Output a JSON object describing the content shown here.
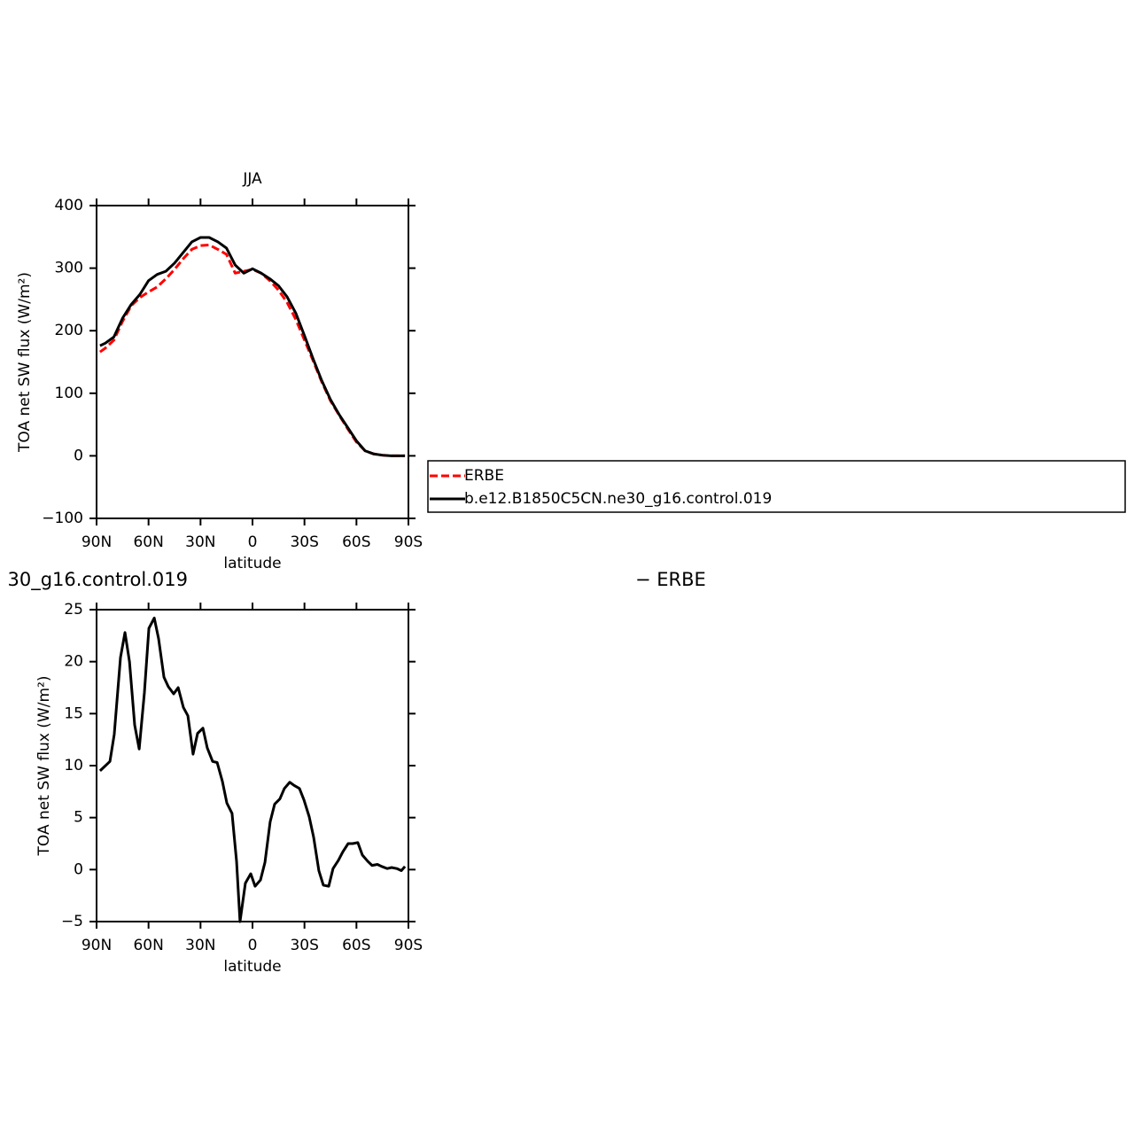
{
  "chart_data": [
    {
      "type": "line",
      "title": "JJA",
      "xlabel": "latitude",
      "ylabel": "TOA net SW flux (W/m²)",
      "x": [
        88,
        85,
        80,
        75,
        70,
        65,
        60,
        55,
        50,
        45,
        40,
        35,
        30,
        25,
        20,
        15,
        10,
        5,
        0,
        -5,
        -10,
        -15,
        -20,
        -25,
        -30,
        -35,
        -40,
        -45,
        -50,
        -55,
        -60,
        -65,
        -70,
        -75,
        -80,
        -85,
        -88
      ],
      "series": [
        {
          "name": "ERBE",
          "color": "#ff0000",
          "dashed": true,
          "values": [
            166,
            172,
            185,
            215,
            240,
            253,
            262,
            270,
            283,
            298,
            315,
            330,
            336,
            337,
            330,
            322,
            292,
            295,
            298,
            292,
            280,
            265,
            245,
            218,
            185,
            152,
            118,
            88,
            65,
            43,
            22,
            8,
            3,
            1,
            0,
            0,
            0
          ]
        },
        {
          "name": "b.e12.B1850C5CN.ne30_g16.control.019",
          "color": "#000000",
          "dashed": false,
          "values": [
            176,
            180,
            190,
            220,
            242,
            258,
            280,
            290,
            295,
            308,
            325,
            342,
            349,
            349,
            342,
            332,
            305,
            292,
            299,
            292,
            283,
            272,
            254,
            228,
            192,
            155,
            120,
            90,
            66,
            45,
            24,
            8,
            3,
            1,
            0,
            0,
            0
          ]
        }
      ],
      "xlim": [
        90,
        -90
      ],
      "xticks": [
        {
          "value": 90,
          "label": "90N"
        },
        {
          "value": 60,
          "label": "60N"
        },
        {
          "value": 30,
          "label": "30N"
        },
        0,
        {
          "value": -30,
          "label": "30S"
        },
        {
          "value": -60,
          "label": "60S"
        },
        {
          "value": -90,
          "label": "90S"
        }
      ],
      "ylim": [
        -100,
        400
      ],
      "yticks": [
        {
          "value": -100,
          "label": "−100"
        },
        0,
        100,
        200,
        300,
        400
      ],
      "legend": "right"
    },
    {
      "type": "line",
      "title_left": "30_g16.control.019",
      "title_right": "− ERBE",
      "xlabel": "latitude",
      "ylabel": "TOA net SW flux (W/m²)",
      "x": [
        88,
        82.3,
        79.8,
        76.2,
        73.6,
        71,
        68,
        65.4,
        62.4,
        59.8,
        56.7,
        54.2,
        51.1,
        48.6,
        45.5,
        42.9,
        39.9,
        37.3,
        34.3,
        31.7,
        28.6,
        26.1,
        23,
        20.4,
        17.4,
        14.8,
        11.8,
        9.2,
        7.2,
        4.1,
        1,
        -1.5,
        -4.6,
        -7.2,
        -10.2,
        -12.8,
        -15.8,
        -18.4,
        -21.5,
        -24,
        -27.1,
        -29.7,
        -32.7,
        -35.3,
        -38.3,
        -40.9,
        -44,
        -46.5,
        -49.6,
        -52.1,
        -55.2,
        -57.8,
        -60.8,
        -63.4,
        -66.5,
        -69,
        -72.1,
        -74.6,
        -77.7,
        -80.3,
        -83.3,
        -85.9,
        -88
      ],
      "series": [
        {
          "color": "#000000",
          "dashed": false,
          "values": [
            9.5,
            10.4,
            13,
            20.4,
            22.8,
            20,
            13.9,
            11.6,
            17,
            23.2,
            24.2,
            22.2,
            18.5,
            17.6,
            16.9,
            17.5,
            15.6,
            14.8,
            11.1,
            13.1,
            13.6,
            11.7,
            10.4,
            10.3,
            8.5,
            6.4,
            5.4,
            0.8,
            -5,
            -1.3,
            -0.4,
            -1.6,
            -1,
            0.7,
            4.6,
            6.3,
            6.8,
            7.8,
            8.4,
            8.1,
            7.8,
            6.7,
            5.1,
            3.1,
            -0.1,
            -1.5,
            -1.6,
            0.1,
            0.9,
            1.7,
            2.5,
            2.5,
            2.6,
            1.4,
            0.8,
            0.4,
            0.5,
            0.3,
            0.1,
            0.2,
            0.1,
            -0.1,
            0.3
          ]
        }
      ],
      "xlim": [
        90,
        -90
      ],
      "xticks": [
        {
          "value": 90,
          "label": "90N"
        },
        {
          "value": 60,
          "label": "60N"
        },
        {
          "value": 30,
          "label": "30N"
        },
        0,
        {
          "value": -30,
          "label": "30S"
        },
        {
          "value": -60,
          "label": "60S"
        },
        {
          "value": -90,
          "label": "90S"
        }
      ],
      "ylim": [
        -5,
        25
      ],
      "yticks": [
        {
          "value": -5,
          "label": "−5"
        },
        0,
        5,
        10,
        15,
        20,
        25
      ]
    }
  ]
}
